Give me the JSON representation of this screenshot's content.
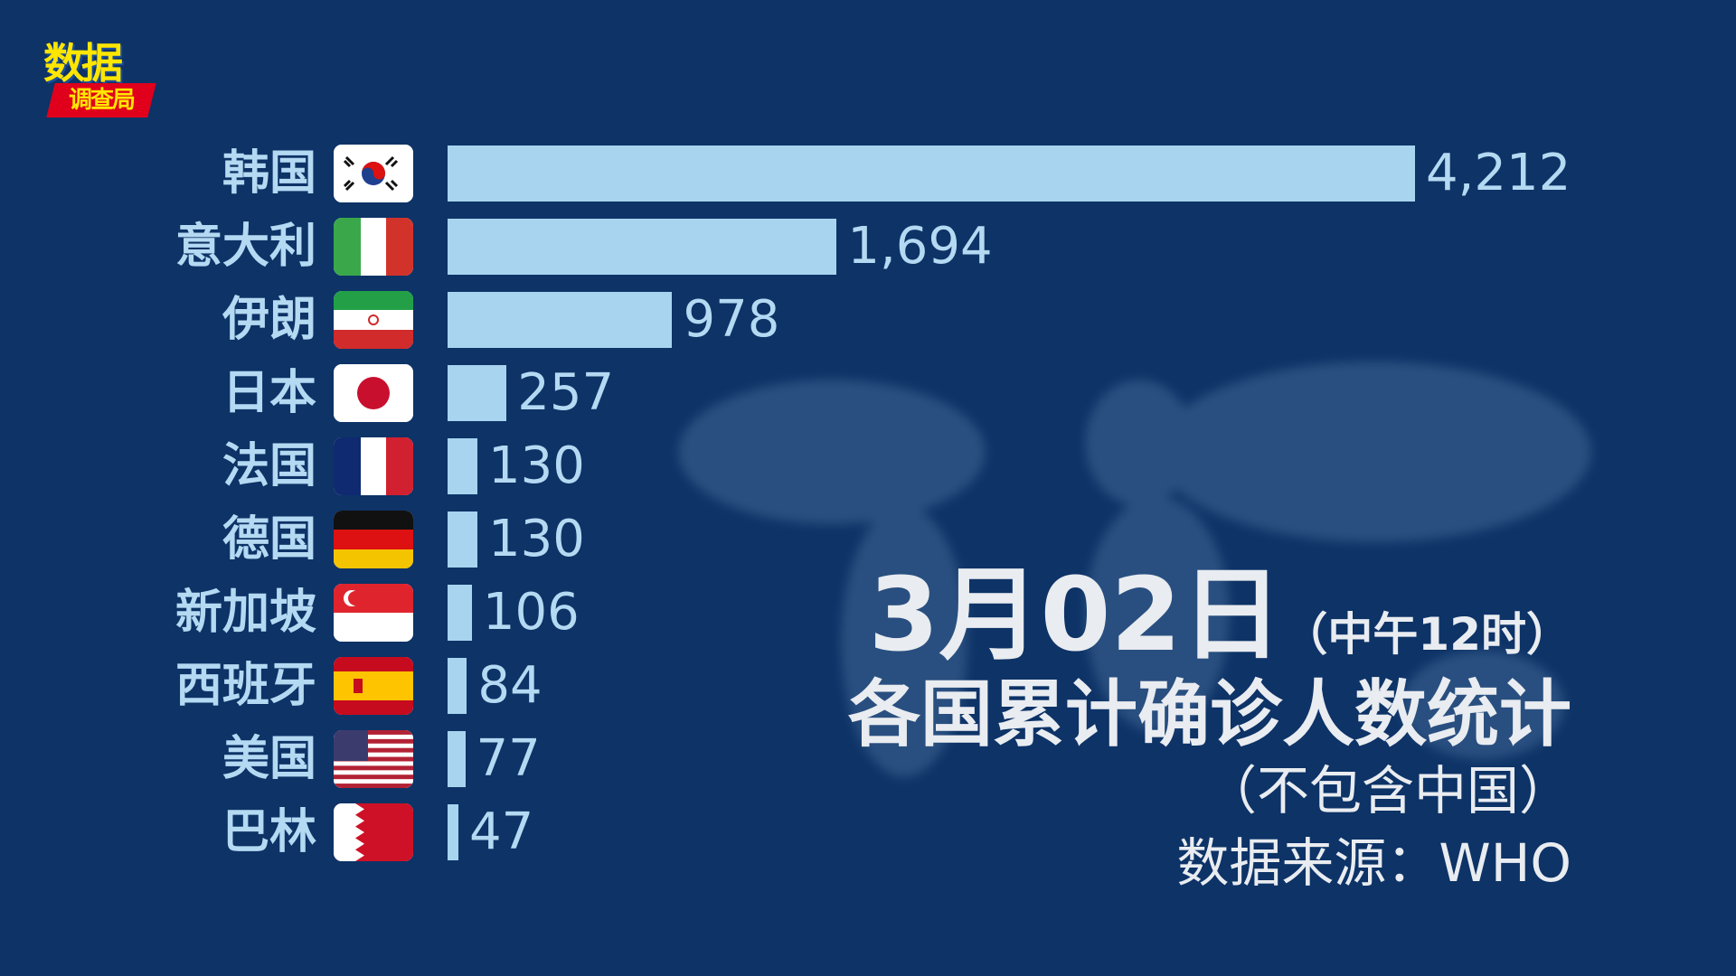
{
  "logo": {
    "top": "数据",
    "bottom": "调查局"
  },
  "chart_data": {
    "type": "bar",
    "orientation": "horizontal",
    "categories": [
      "韩国",
      "意大利",
      "伊朗",
      "日本",
      "法国",
      "德国",
      "新加坡",
      "西班牙",
      "美国",
      "巴林"
    ],
    "values": [
      4212,
      1694,
      978,
      257,
      130,
      130,
      106,
      84,
      77,
      47
    ],
    "value_labels": [
      "4,212",
      "1,694",
      "978",
      "257",
      "130",
      "130",
      "106",
      "84",
      "77",
      "47"
    ],
    "flags": [
      "kr",
      "it",
      "ir",
      "jp",
      "fr",
      "de",
      "sg",
      "es",
      "us",
      "bh"
    ],
    "bar_color": "#a8d4ef",
    "title": "各国累计确诊人数统计"
  },
  "date": {
    "main": "3月02日",
    "time": "（中午12时）"
  },
  "title": "各国累计确诊人数统计",
  "note": "（不包含中国）",
  "source": "数据来源：WHO"
}
